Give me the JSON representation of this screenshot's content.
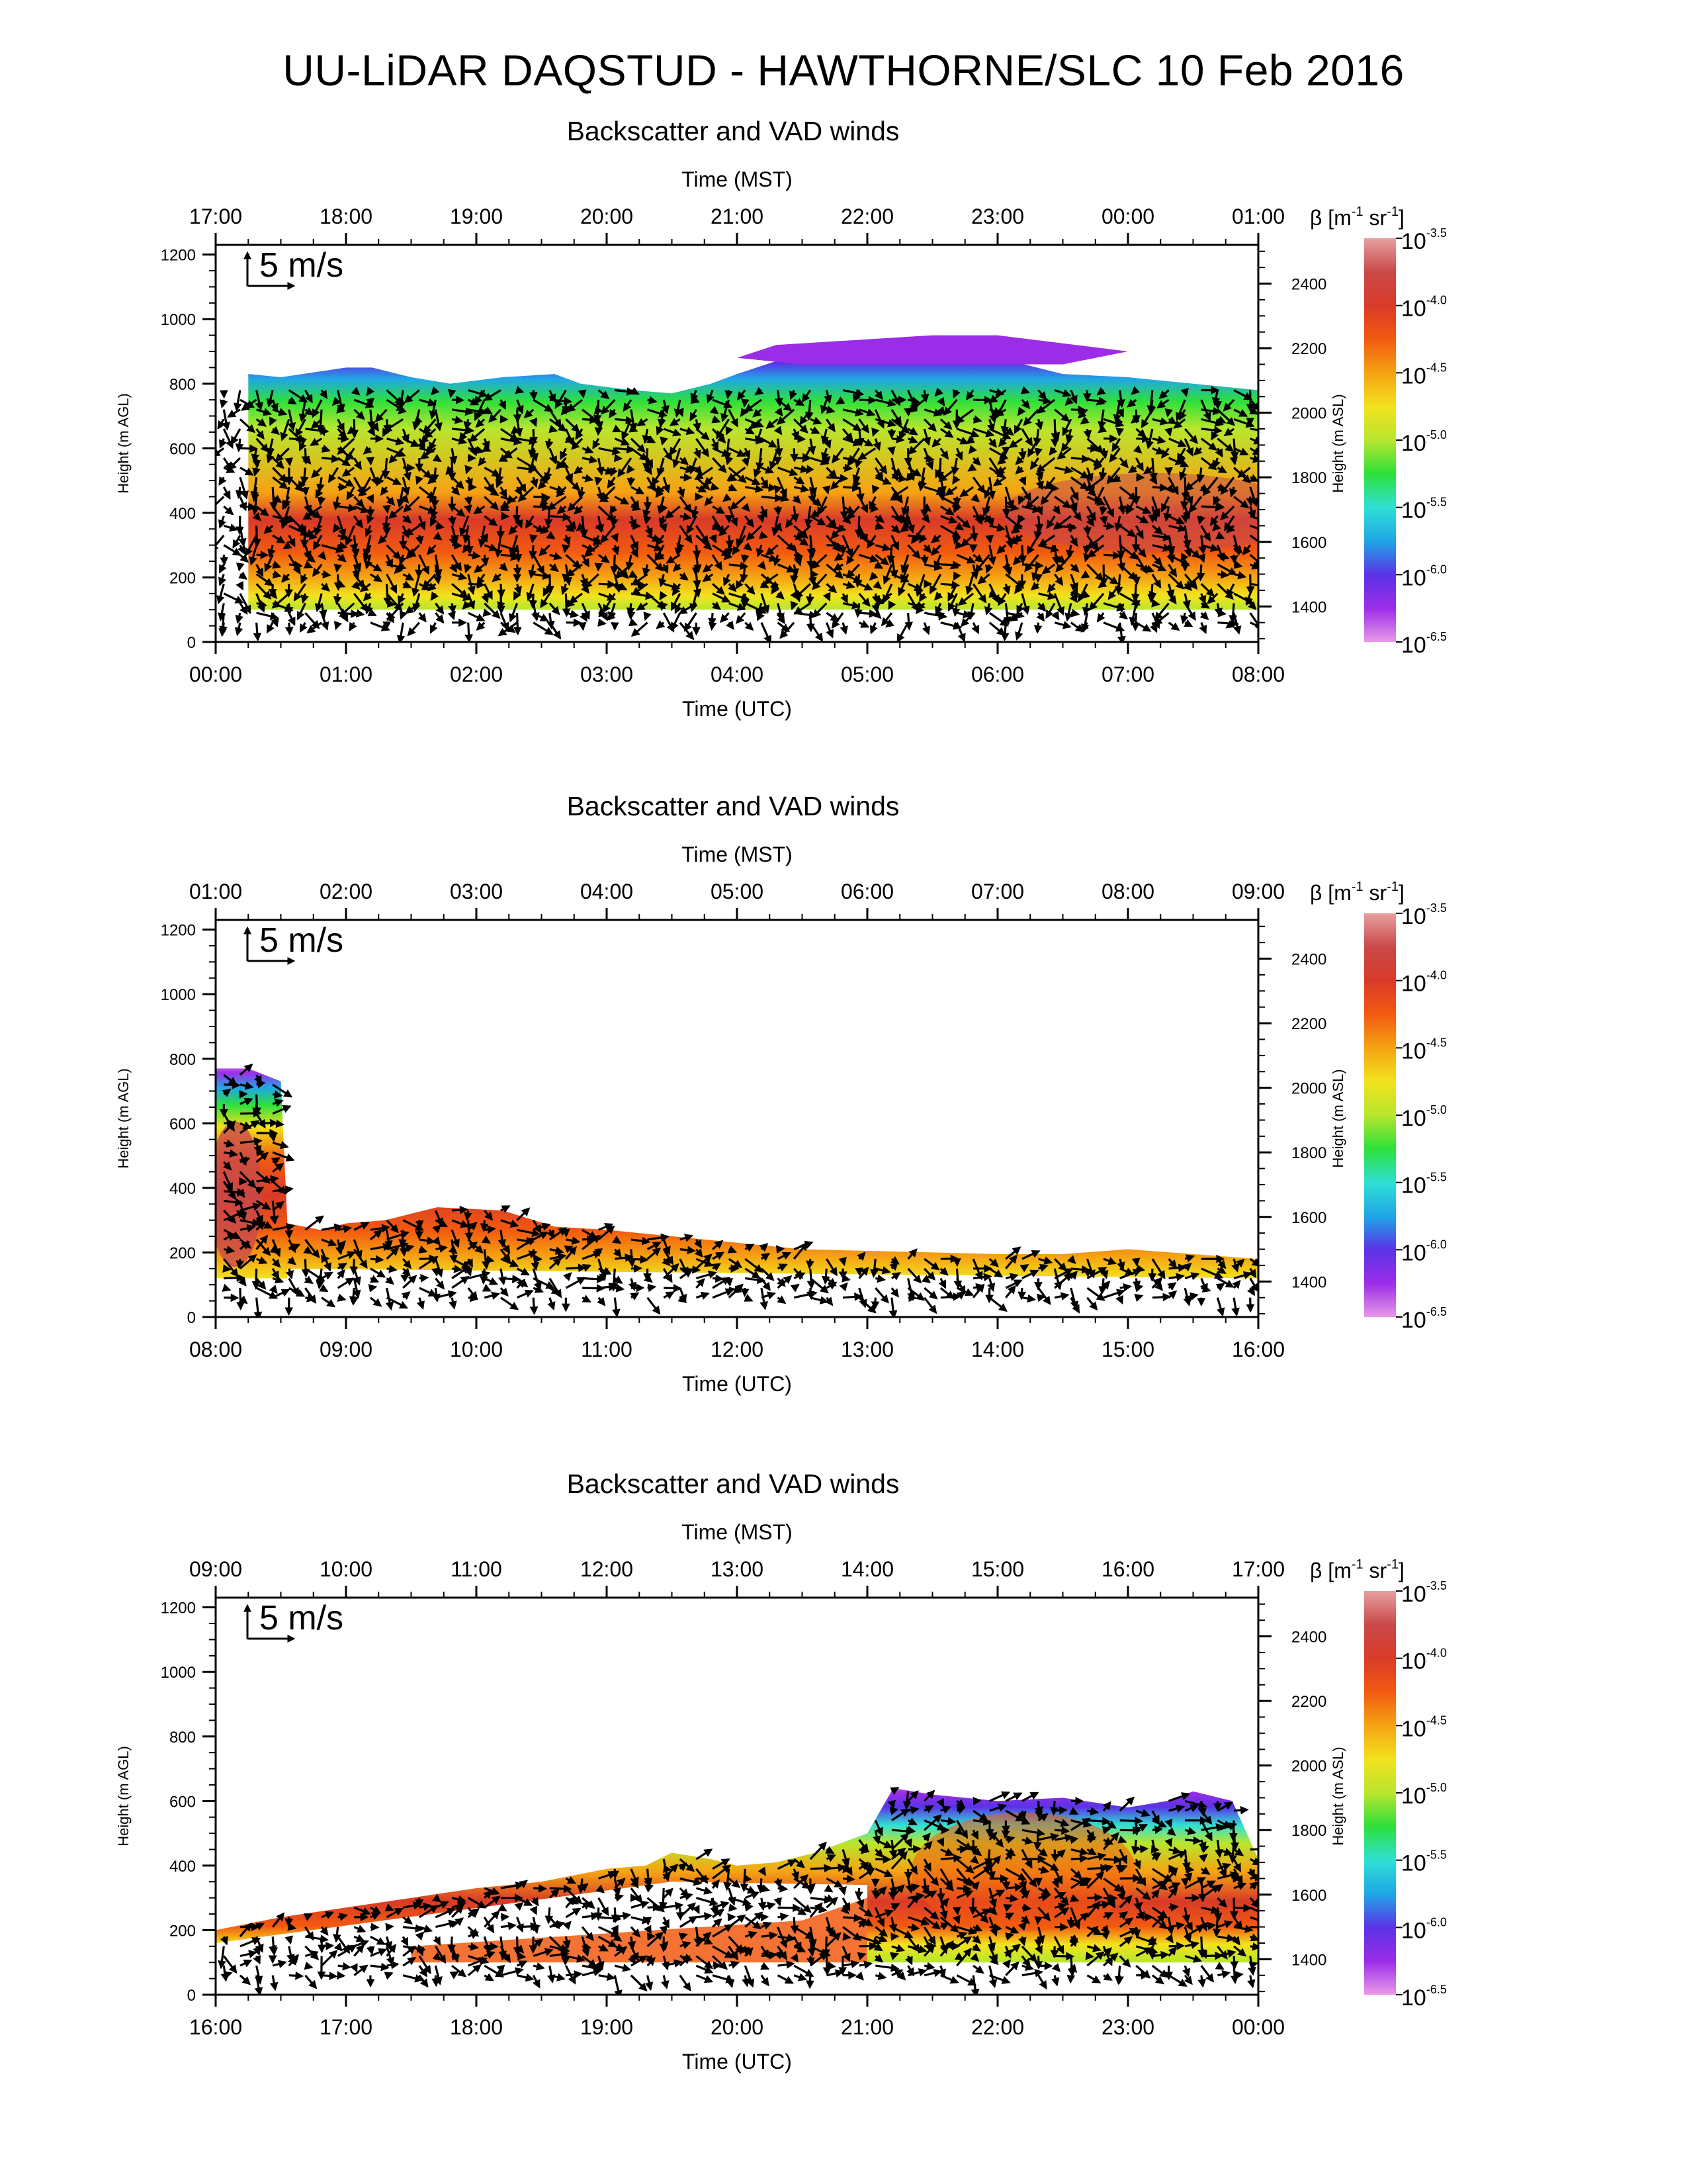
{
  "figure": {
    "title": "UU-LiDAR DAQSTUD - HAWTHORNE/SLC 10 Feb 2016"
  },
  "colors": {
    "axis": "#000000",
    "arrow": "#000000",
    "colormap": [
      "#e89ae8",
      "#9b2de8",
      "#5a33e6",
      "#1fa7e6",
      "#2fe0d4",
      "#2ee03a",
      "#b8e62e",
      "#f2e21e",
      "#f5a313",
      "#f25a10",
      "#d93a28",
      "#c94a4a",
      "#e8a0a0"
    ]
  },
  "chart_data": [
    {
      "type": "heatmap",
      "subtitle": "Backscatter and VAD winds",
      "top_axis_label": "Time (MST)",
      "top_ticks": [
        "17:00",
        "18:00",
        "19:00",
        "20:00",
        "21:00",
        "22:00",
        "23:00",
        "00:00",
        "01:00"
      ],
      "bottom_ticks": [
        "00:00",
        "01:00",
        "02:00",
        "03:00",
        "04:00",
        "05:00",
        "06:00",
        "07:00",
        "08:00"
      ],
      "xlabel": "Time (UTC)",
      "x_range_hours": [
        0,
        8
      ],
      "ylabel_left": "Height (m AGL)",
      "yticks_left": [
        0,
        200,
        400,
        600,
        800,
        1000,
        1200
      ],
      "ylim_left": [
        0,
        1230
      ],
      "ylabel_right": "Height (m ASL)",
      "yticks_right": [
        1400,
        1600,
        1800,
        2000,
        2200,
        2400
      ],
      "right_axis_offset_m": 1290,
      "wind_scale_label": "5 m/s",
      "colorbar": {
        "label_prefix": "β [m",
        "label_exp1": "-1",
        "label_mid": " sr",
        "label_exp2": "-1",
        "label_suffix": "]",
        "tick_base": "10",
        "tick_exponents": [
          "-3.5",
          "-4.0",
          "-4.5",
          "-5.0",
          "-5.5",
          "-6.0",
          "-6.5"
        ]
      },
      "aerosol_top_m": [
        [
          0.25,
          830
        ],
        [
          0.5,
          820
        ],
        [
          1.0,
          850
        ],
        [
          1.2,
          850
        ],
        [
          1.5,
          820
        ],
        [
          1.8,
          800
        ],
        [
          2.2,
          820
        ],
        [
          2.6,
          830
        ],
        [
          2.8,
          800
        ],
        [
          3.2,
          780
        ],
        [
          3.5,
          770
        ],
        [
          3.8,
          800
        ],
        [
          4.0,
          830
        ],
        [
          4.3,
          870
        ],
        [
          4.8,
          880
        ],
        [
          5.2,
          900
        ],
        [
          5.5,
          930
        ],
        [
          6.0,
          880
        ],
        [
          6.5,
          830
        ],
        [
          7.0,
          820
        ],
        [
          7.5,
          800
        ],
        [
          8.0,
          780
        ]
      ],
      "aerosol_bottom_m": 100,
      "layer_center_m": 380
    },
    {
      "type": "heatmap",
      "subtitle": "Backscatter and VAD winds",
      "top_axis_label": "Time (MST)",
      "top_ticks": [
        "01:00",
        "02:00",
        "03:00",
        "04:00",
        "05:00",
        "06:00",
        "07:00",
        "08:00",
        "09:00"
      ],
      "bottom_ticks": [
        "08:00",
        "09:00",
        "10:00",
        "11:00",
        "12:00",
        "13:00",
        "14:00",
        "15:00",
        "16:00"
      ],
      "xlabel": "Time (UTC)",
      "x_range_hours": [
        0,
        8
      ],
      "ylabel_left": "Height (m AGL)",
      "yticks_left": [
        0,
        200,
        400,
        600,
        800,
        1000,
        1200
      ],
      "ylim_left": [
        0,
        1230
      ],
      "ylabel_right": "Height (m ASL)",
      "yticks_right": [
        1400,
        1600,
        1800,
        2000,
        2200,
        2400
      ],
      "right_axis_offset_m": 1290,
      "wind_scale_label": "5 m/s",
      "colorbar": {
        "label_prefix": "β [m",
        "label_exp1": "-1",
        "label_mid": " sr",
        "label_exp2": "-1",
        "label_suffix": "]",
        "tick_base": "10",
        "tick_exponents": [
          "-3.5",
          "-4.0",
          "-4.5",
          "-5.0",
          "-5.5",
          "-6.0",
          "-6.5"
        ]
      },
      "aerosol_top_m": [
        [
          0.0,
          770
        ],
        [
          0.25,
          770
        ],
        [
          0.5,
          730
        ],
        [
          0.55,
          290
        ],
        [
          0.8,
          270
        ],
        [
          1.0,
          290
        ],
        [
          1.3,
          300
        ],
        [
          1.7,
          340
        ],
        [
          2.2,
          330
        ],
        [
          2.6,
          280
        ],
        [
          3.0,
          270
        ],
        [
          3.5,
          250
        ],
        [
          4.0,
          230
        ],
        [
          4.5,
          210
        ],
        [
          5.0,
          205
        ],
        [
          5.5,
          200
        ],
        [
          6.0,
          195
        ],
        [
          6.5,
          195
        ],
        [
          7.0,
          210
        ],
        [
          7.5,
          195
        ],
        [
          8.0,
          180
        ]
      ],
      "aerosol_bottom_m": 120,
      "layer_center_m": 160
    },
    {
      "type": "heatmap",
      "subtitle": "Backscatter and VAD winds",
      "top_axis_label": "Time (MST)",
      "top_ticks": [
        "09:00",
        "10:00",
        "11:00",
        "12:00",
        "13:00",
        "14:00",
        "15:00",
        "16:00",
        "17:00"
      ],
      "bottom_ticks": [
        "16:00",
        "17:00",
        "18:00",
        "19:00",
        "20:00",
        "21:00",
        "22:00",
        "23:00",
        "00:00"
      ],
      "xlabel": "Time (UTC)",
      "x_range_hours": [
        0,
        8
      ],
      "ylabel_left": "Height (m AGL)",
      "yticks_left": [
        0,
        200,
        400,
        600,
        800,
        1000,
        1200
      ],
      "ylim_left": [
        0,
        1230
      ],
      "ylabel_right": "Height (m ASL)",
      "yticks_right": [
        1400,
        1600,
        1800,
        2000,
        2200,
        2400
      ],
      "right_axis_offset_m": 1290,
      "wind_scale_label": "5 m/s",
      "colorbar": {
        "label_prefix": "β [m",
        "label_exp1": "-1",
        "label_mid": " sr",
        "label_exp2": "-1",
        "label_suffix": "]",
        "tick_base": "10",
        "tick_exponents": [
          "-3.5",
          "-4.0",
          "-4.5",
          "-5.0",
          "-5.5",
          "-6.0",
          "-6.5"
        ]
      },
      "aerosol_top_m": [
        [
          0.0,
          200
        ],
        [
          0.5,
          240
        ],
        [
          1.0,
          270
        ],
        [
          1.5,
          300
        ],
        [
          2.0,
          330
        ],
        [
          2.5,
          350
        ],
        [
          3.0,
          390
        ],
        [
          3.3,
          400
        ],
        [
          3.5,
          440
        ],
        [
          3.8,
          420
        ],
        [
          4.0,
          400
        ],
        [
          4.3,
          410
        ],
        [
          4.6,
          440
        ],
        [
          5.0,
          500
        ],
        [
          5.2,
          640
        ],
        [
          5.5,
          620
        ],
        [
          6.0,
          600
        ],
        [
          6.5,
          610
        ],
        [
          7.0,
          580
        ],
        [
          7.3,
          600
        ],
        [
          7.5,
          630
        ],
        [
          7.8,
          600
        ],
        [
          8.0,
          420
        ]
      ],
      "aerosol_bottom_m": 100,
      "layer_center_m": 250
    }
  ]
}
